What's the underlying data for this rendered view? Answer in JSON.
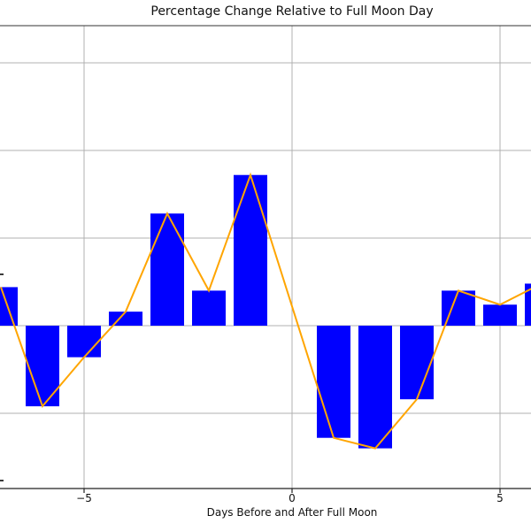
{
  "chart_data": {
    "type": "bar",
    "title": "Percentage Change Relative to Full Moon Day",
    "xlabel": "Days Before and After Full Moon",
    "ylabel": "",
    "x": [
      -7,
      -6,
      -5,
      -4,
      -3,
      -2,
      -1,
      1,
      2,
      3,
      4,
      5,
      6
    ],
    "series": [
      {
        "name": "percentage-change-bars",
        "type": "bar",
        "color": "#0000FF",
        "values": [
          0.11,
          -0.23,
          -0.09,
          0.04,
          0.32,
          0.1,
          0.43,
          -0.32,
          -0.35,
          -0.21,
          0.1,
          0.06,
          0.12
        ]
      },
      {
        "name": "percentage-change-line",
        "type": "line",
        "color": "#FFA500",
        "values": [
          0.11,
          -0.23,
          -0.09,
          0.04,
          0.32,
          0.1,
          0.43,
          -0.32,
          -0.35,
          -0.21,
          0.1,
          0.06,
          0.12
        ]
      }
    ],
    "x_tick_days": [
      -5,
      0,
      5
    ],
    "x_tick_labels": [
      "−5",
      "0",
      "5"
    ],
    "y_gridline_values": [
      0.75,
      0.5,
      0.25,
      0.0,
      -0.25
    ],
    "grid": true,
    "grid_color": "#B0B0B0",
    "axis_color": "#222222",
    "xlim_visible": [
      -7.02,
      5.74
    ],
    "ylim_visible": [
      -0.46,
      0.85
    ],
    "legend": "none",
    "note": "left edge of figure is cropped; y-axis tick labels cut off"
  }
}
